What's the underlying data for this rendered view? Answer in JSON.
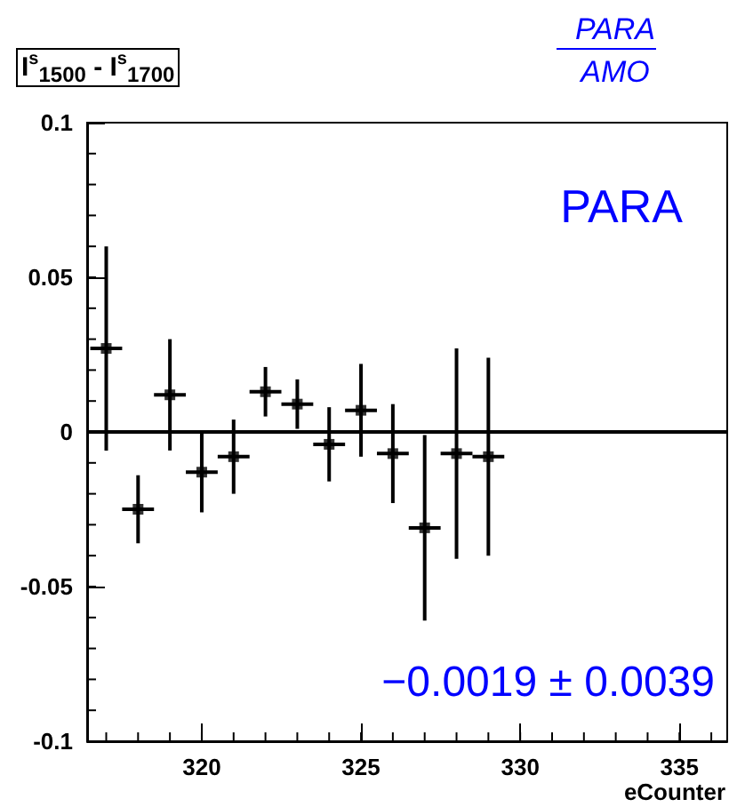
{
  "chart_data": {
    "type": "scatter",
    "title": "PARA",
    "subtitle": "AMO",
    "xlabel": "eCounter",
    "ylabel": "I$^{s}$$_{1500}$ - I$^{s}$$_{1700}$",
    "annotations": [
      "PARA",
      "−0.0019 ± 0.0039"
    ],
    "x": [
      317,
      318,
      319,
      320,
      321,
      322,
      323,
      324,
      325,
      326,
      327,
      328,
      329
    ],
    "series": [
      {
        "color": "#000000",
        "values": [
          0.027,
          -0.025,
          0.012,
          -0.013,
          -0.008,
          0.013,
          0.009,
          -0.004,
          0.007,
          -0.007,
          -0.031,
          -0.007,
          -0.008
        ],
        "errors": [
          0.033,
          0.011,
          0.018,
          0.013,
          0.012,
          0.008,
          0.008,
          0.012,
          0.015,
          0.016,
          0.03,
          0.034,
          0.032
        ],
        "xerrors": [
          0.5,
          0.5,
          0.5,
          0.5,
          0.5,
          0.5,
          0.5,
          0.5,
          0.5,
          0.5,
          0.5,
          0.5,
          0.5
        ]
      }
    ],
    "xlim": [
      316.4,
      336.5
    ],
    "ylim": [
      -0.1,
      0.1
    ],
    "xticks": [
      320,
      325,
      330,
      335
    ],
    "yticks": [
      -0.1,
      -0.05,
      0,
      0.05,
      0.1
    ],
    "ref_lines": [
      {
        "axis": "y",
        "value": 0,
        "color": "#000000"
      }
    ],
    "marker": "square",
    "grid": false
  }
}
